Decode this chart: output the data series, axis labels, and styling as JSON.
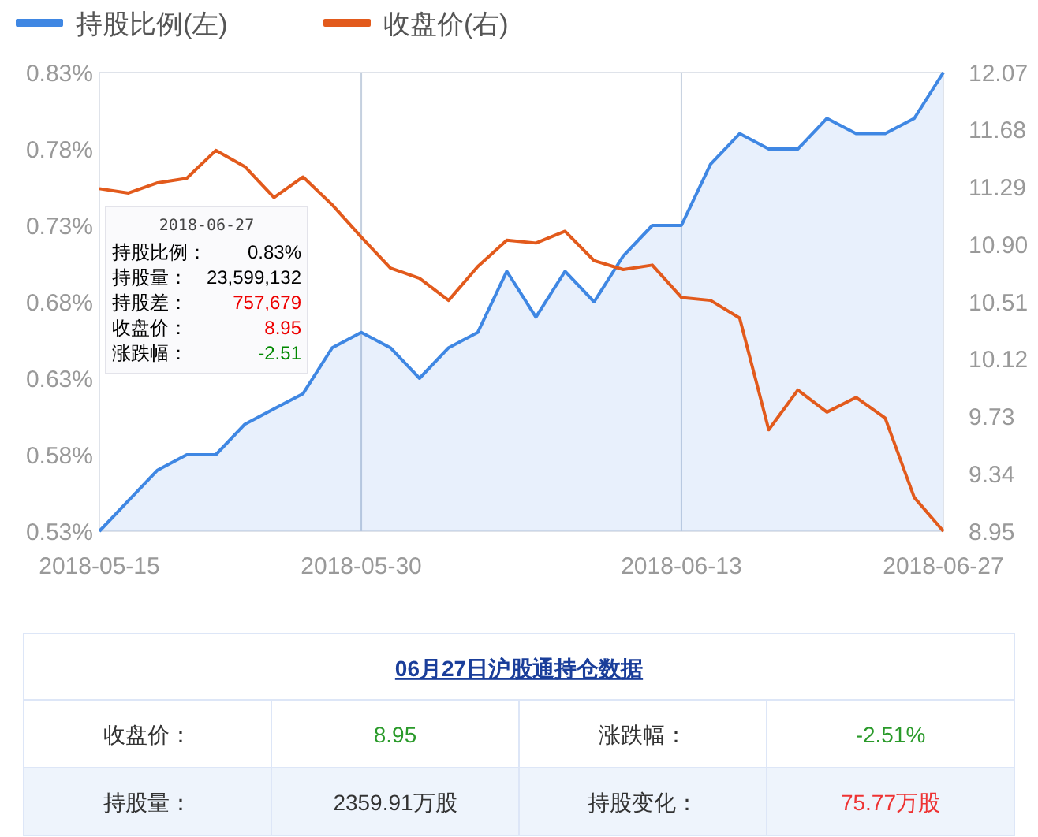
{
  "chart_data": [
    {
      "type": "line",
      "categories": [
        "2018-05-15",
        null,
        null,
        null,
        null,
        null,
        null,
        null,
        null,
        "2018-05-30",
        null,
        null,
        null,
        null,
        null,
        null,
        null,
        null,
        null,
        null,
        "2018-06-13",
        null,
        null,
        null,
        null,
        null,
        null,
        null,
        null,
        "2018-06-27"
      ],
      "series": [
        {
          "name": "持股比例(左)",
          "type": "area",
          "color": "#3f87e3",
          "values": [
            0.53,
            0.55,
            0.57,
            0.58,
            0.58,
            0.6,
            0.61,
            0.62,
            0.65,
            0.66,
            0.65,
            0.63,
            0.65,
            0.66,
            0.7,
            0.67,
            0.7,
            0.68,
            0.71,
            0.73,
            0.73,
            0.77,
            0.79,
            0.78,
            0.78,
            0.8,
            0.79,
            0.79,
            0.8,
            0.83
          ]
        },
        {
          "name": "收盘价(右)",
          "type": "line",
          "axis": "y2",
          "color": "#e25a1c",
          "values": [
            11.28,
            11.25,
            11.32,
            11.35,
            11.54,
            11.43,
            11.22,
            11.36,
            11.17,
            10.95,
            10.74,
            10.67,
            10.52,
            10.75,
            10.93,
            10.91,
            10.99,
            10.79,
            10.73,
            10.76,
            10.54,
            10.52,
            10.4,
            9.64,
            9.91,
            9.76,
            9.86,
            9.72,
            9.18,
            8.95
          ]
        }
      ],
      "ylim": [
        0.53,
        0.83
      ],
      "yticks": [
        {
          "value": 0.53,
          "label": "0.53%"
        },
        {
          "value": 0.58,
          "label": "0.58%"
        },
        {
          "value": 0.63,
          "label": "0.63%"
        },
        {
          "value": 0.68,
          "label": "0.68%"
        },
        {
          "value": 0.73,
          "label": "0.73%"
        },
        {
          "value": 0.78,
          "label": "0.78%"
        },
        {
          "value": 0.83,
          "label": "0.83%"
        }
      ],
      "y2lim": [
        8.95,
        12.07
      ],
      "y2ticks": [
        8.95,
        9.34,
        9.73,
        10.12,
        10.51,
        {
          "value": 10.9,
          "label": "10.90"
        },
        11.29,
        11.68,
        12.07
      ],
      "grid": "x",
      "legend": "top left",
      "marker": "none",
      "annotations": [
        "2018-06-27",
        "持股比例：\t0.83%",
        "持股量：\t23,599,132",
        "持股差：\t757,679",
        "收盘价：\t8.95",
        "涨跌幅：\t-2.51"
      ]
    },
    {
      "type": "other",
      "title": "06月27日沪股通持仓数据",
      "annotations": [
        "收盘价：",
        "8.95",
        "涨跌幅：",
        "-2.51%",
        "持股量：",
        "2359.91万股",
        "持股变化：",
        "75.77万股"
      ]
    }
  ]
}
